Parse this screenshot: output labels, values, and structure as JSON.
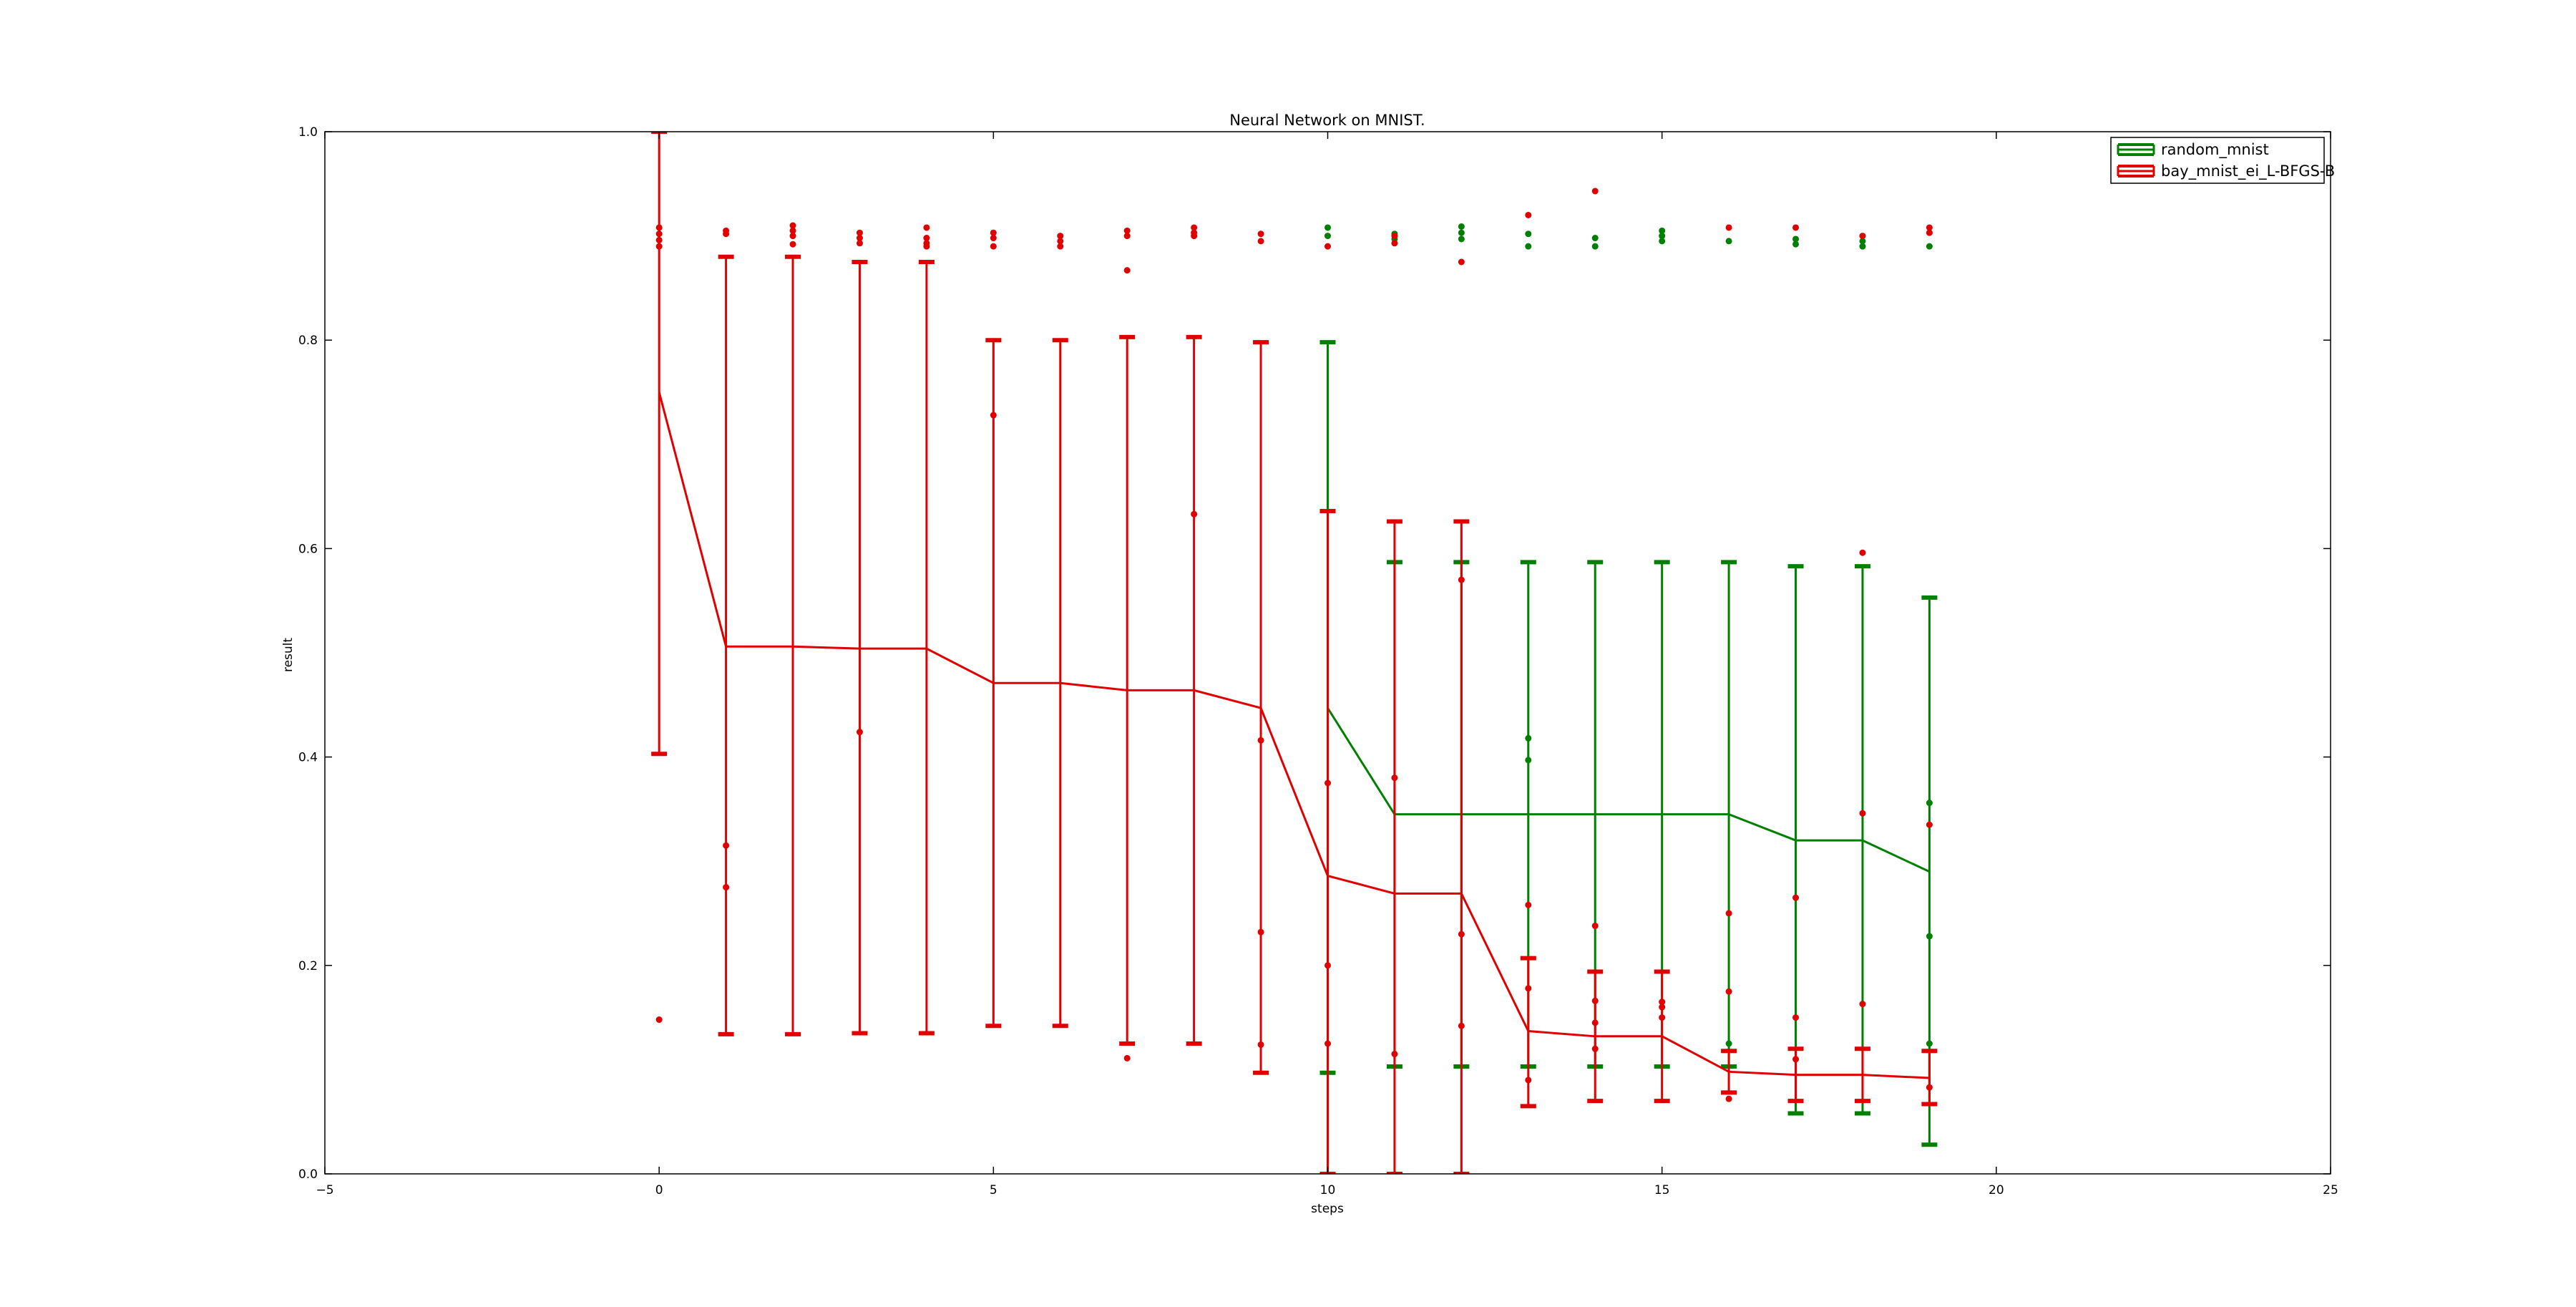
{
  "chart_data": {
    "type": "line",
    "title": "Neural Network on MNIST.",
    "xlabel": "steps",
    "ylabel": "result",
    "xlim": [
      -5,
      25
    ],
    "ylim": [
      0.0,
      1.0
    ],
    "xticks": [
      -5,
      0,
      5,
      10,
      15,
      20,
      25
    ],
    "yticks": [
      0.0,
      0.2,
      0.4,
      0.6,
      0.8,
      1.0
    ],
    "xtick_labels": [
      "−5",
      "0",
      "5",
      "10",
      "15",
      "20",
      "25"
    ],
    "ytick_labels": [
      "0.0",
      "0.2",
      "0.4",
      "0.6",
      "0.8",
      "1.0"
    ],
    "grid": false,
    "legend_position": "top-right",
    "series": [
      {
        "name": "random_mnist",
        "color": "#008000",
        "x": [
          10,
          11,
          12,
          13,
          14,
          15,
          16,
          17,
          18,
          19
        ],
        "mean": [
          0.447,
          0.345,
          0.345,
          0.345,
          0.345,
          0.345,
          0.345,
          0.32,
          0.32,
          0.29
        ],
        "err_low": [
          0.097,
          0.103,
          0.103,
          0.103,
          0.103,
          0.103,
          0.103,
          0.058,
          0.058,
          0.028
        ],
        "err_high": [
          0.798,
          0.587,
          0.587,
          0.587,
          0.587,
          0.587,
          0.587,
          0.583,
          0.583,
          0.553
        ],
        "points": [
          [
            10,
            0.9
          ],
          [
            10,
            0.908
          ],
          [
            11,
            0.897
          ],
          [
            11,
            0.902
          ],
          [
            12,
            0.897
          ],
          [
            12,
            0.903
          ],
          [
            12,
            0.909
          ],
          [
            13,
            0.89
          ],
          [
            13,
            0.902
          ],
          [
            13,
            0.418
          ],
          [
            13,
            0.397
          ],
          [
            14,
            0.89
          ],
          [
            14,
            0.898
          ],
          [
            15,
            0.895
          ],
          [
            15,
            0.9
          ],
          [
            15,
            0.905
          ],
          [
            16,
            0.895
          ],
          [
            16,
            0.125
          ],
          [
            17,
            0.892
          ],
          [
            17,
            0.897
          ],
          [
            18,
            0.89
          ],
          [
            18,
            0.895
          ],
          [
            19,
            0.89
          ],
          [
            19,
            0.356
          ],
          [
            19,
            0.228
          ],
          [
            19,
            0.125
          ]
        ]
      },
      {
        "name": "bay_mnist_ei_L-BFGS-B",
        "color": "#e00000",
        "x": [
          0,
          1,
          2,
          3,
          4,
          5,
          6,
          7,
          8,
          9,
          10,
          11,
          12,
          13,
          14,
          15,
          16,
          17,
          18,
          19
        ],
        "mean": [
          0.75,
          0.506,
          0.506,
          0.504,
          0.504,
          0.471,
          0.471,
          0.464,
          0.464,
          0.447,
          0.286,
          0.269,
          0.269,
          0.137,
          0.132,
          0.132,
          0.098,
          0.095,
          0.095,
          0.092
        ],
        "err_low": [
          0.403,
          0.134,
          0.134,
          0.135,
          0.135,
          0.142,
          0.142,
          0.125,
          0.125,
          0.097,
          0.0,
          0.0,
          0.0,
          0.065,
          0.07,
          0.07,
          0.078,
          0.07,
          0.07,
          0.067
        ],
        "err_high": [
          1.0,
          0.88,
          0.88,
          0.875,
          0.875,
          0.8,
          0.8,
          0.803,
          0.803,
          0.798,
          0.636,
          0.626,
          0.626,
          0.207,
          0.194,
          0.194,
          0.118,
          0.12,
          0.12,
          0.118
        ],
        "points": [
          [
            0,
            0.908
          ],
          [
            0,
            0.902
          ],
          [
            0,
            0.896
          ],
          [
            0,
            0.89
          ],
          [
            0,
            0.148
          ],
          [
            1,
            0.902
          ],
          [
            1,
            0.905
          ],
          [
            1,
            0.315
          ],
          [
            1,
            0.275
          ],
          [
            2,
            0.892
          ],
          [
            2,
            0.9
          ],
          [
            2,
            0.905
          ],
          [
            2,
            0.91
          ],
          [
            3,
            0.893
          ],
          [
            3,
            0.898
          ],
          [
            3,
            0.903
          ],
          [
            3,
            0.424
          ],
          [
            4,
            0.89
          ],
          [
            4,
            0.893
          ],
          [
            4,
            0.898
          ],
          [
            4,
            0.908
          ],
          [
            5,
            0.89
          ],
          [
            5,
            0.898
          ],
          [
            5,
            0.903
          ],
          [
            5,
            0.728
          ],
          [
            6,
            0.89
          ],
          [
            6,
            0.895
          ],
          [
            6,
            0.9
          ],
          [
            7,
            0.9
          ],
          [
            7,
            0.905
          ],
          [
            7,
            0.867
          ],
          [
            7,
            0.111
          ],
          [
            8,
            0.9
          ],
          [
            8,
            0.903
          ],
          [
            8,
            0.908
          ],
          [
            8,
            0.633
          ],
          [
            9,
            0.895
          ],
          [
            9,
            0.902
          ],
          [
            9,
            0.416
          ],
          [
            9,
            0.232
          ],
          [
            9,
            0.124
          ],
          [
            10,
            0.89
          ],
          [
            10,
            0.375
          ],
          [
            10,
            0.2
          ],
          [
            10,
            0.125
          ],
          [
            11,
            0.893
          ],
          [
            11,
            0.9
          ],
          [
            11,
            0.38
          ],
          [
            11,
            0.115
          ],
          [
            12,
            0.875
          ],
          [
            12,
            0.57
          ],
          [
            12,
            0.23
          ],
          [
            12,
            0.142
          ],
          [
            13,
            0.92
          ],
          [
            13,
            0.258
          ],
          [
            13,
            0.178
          ],
          [
            13,
            0.09
          ],
          [
            14,
            0.943
          ],
          [
            14,
            0.238
          ],
          [
            14,
            0.166
          ],
          [
            14,
            0.145
          ],
          [
            14,
            0.12
          ],
          [
            15,
            0.165
          ],
          [
            15,
            0.16
          ],
          [
            15,
            0.15
          ],
          [
            16,
            0.908
          ],
          [
            16,
            0.25
          ],
          [
            16,
            0.175
          ],
          [
            16,
            0.072
          ],
          [
            17,
            0.908
          ],
          [
            17,
            0.265
          ],
          [
            17,
            0.15
          ],
          [
            17,
            0.11
          ],
          [
            18,
            0.9
          ],
          [
            18,
            0.596
          ],
          [
            18,
            0.346
          ],
          [
            18,
            0.163
          ],
          [
            19,
            0.908
          ],
          [
            19,
            0.903
          ],
          [
            19,
            0.335
          ],
          [
            19,
            0.083
          ]
        ]
      }
    ]
  }
}
